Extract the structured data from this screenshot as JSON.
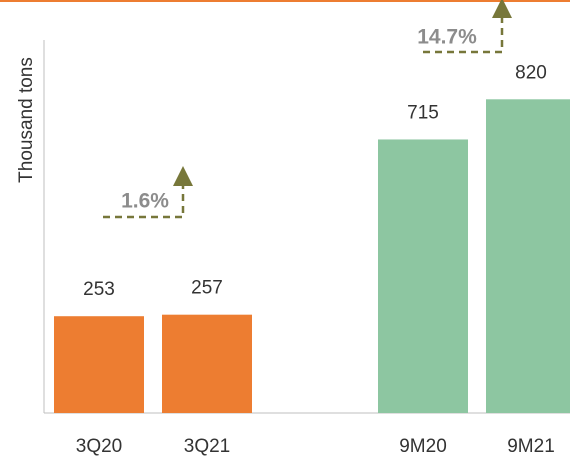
{
  "chart_data": {
    "type": "bar",
    "y_label": "Thousand tons",
    "categories": [
      "3Q20",
      "3Q21",
      "9M20",
      "9M21"
    ],
    "values": [
      253,
      257,
      715,
      820
    ],
    "colors": [
      "#ED7D31",
      "#ED7D31",
      "#8DC6A1",
      "#8DC6A1"
    ],
    "ylim": [
      0,
      975
    ],
    "annotations": [
      "1.6%",
      "14.7%"
    ]
  }
}
